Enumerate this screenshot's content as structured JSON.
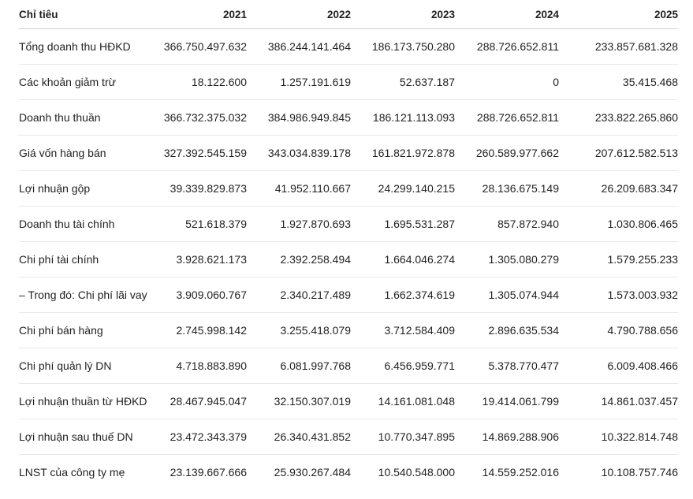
{
  "table": {
    "header": [
      "Chỉ tiêu",
      "2021",
      "2022",
      "2023",
      "2024",
      "2025"
    ],
    "rows": [
      [
        "Tổng doanh thu HĐKD",
        "366.750.497.632",
        "386.244.141.464",
        "186.173.750.280",
        "288.726.652.811",
        "233.857.681.328"
      ],
      [
        "Các khoản giảm trừ",
        "18.122.600",
        "1.257.191.619",
        "52.637.187",
        "0",
        "35.415.468"
      ],
      [
        "Doanh thu thuần",
        "366.732.375.032",
        "384.986.949.845",
        "186.121.113.093",
        "288.726.652.811",
        "233.822.265.860"
      ],
      [
        "Giá vốn hàng bán",
        "327.392.545.159",
        "343.034.839.178",
        "161.821.972.878",
        "260.589.977.662",
        "207.612.582.513"
      ],
      [
        "Lợi nhuận gộp",
        "39.339.829.873",
        "41.952.110.667",
        "24.299.140.215",
        "28.136.675.149",
        "26.209.683.347"
      ],
      [
        "Doanh thu tài chính",
        "521.618.379",
        "1.927.870.693",
        "1.695.531.287",
        "857.872.940",
        "1.030.806.465"
      ],
      [
        "Chi phí tài chính",
        "3.928.621.173",
        "2.392.258.494",
        "1.664.046.274",
        "1.305.080.279",
        "1.579.255.233"
      ],
      [
        "– Trong đó: Chi phí lãi vay",
        "3.909.060.767",
        "2.340.217.489",
        "1.662.374.619",
        "1.305.074.944",
        "1.573.003.932"
      ],
      [
        "Chi phí bán hàng",
        "2.745.998.142",
        "3.255.418.079",
        "3.712.584.409",
        "2.896.635.534",
        "4.790.788.656"
      ],
      [
        "Chi phí quản lý DN",
        "4.718.883.890",
        "6.081.997.768",
        "6.456.959.771",
        "5.378.770.477",
        "6.009.408.466"
      ],
      [
        "Lợi nhuận thuần từ HĐKD",
        "28.467.945.047",
        "32.150.307.019",
        "14.161.081.048",
        "19.414.061.799",
        "14.861.037.457"
      ],
      [
        "Lợi nhuận sau thuế DN",
        "23.472.343.379",
        "26.340.431.852",
        "10.770.347.895",
        "14.869.288.906",
        "10.322.814.748"
      ],
      [
        "LNST của công ty mẹ",
        "23.139.667.666",
        "25.930.267.484",
        "10.540.548.000",
        "14.559.252.016",
        "10.108.757.746"
      ]
    ]
  }
}
